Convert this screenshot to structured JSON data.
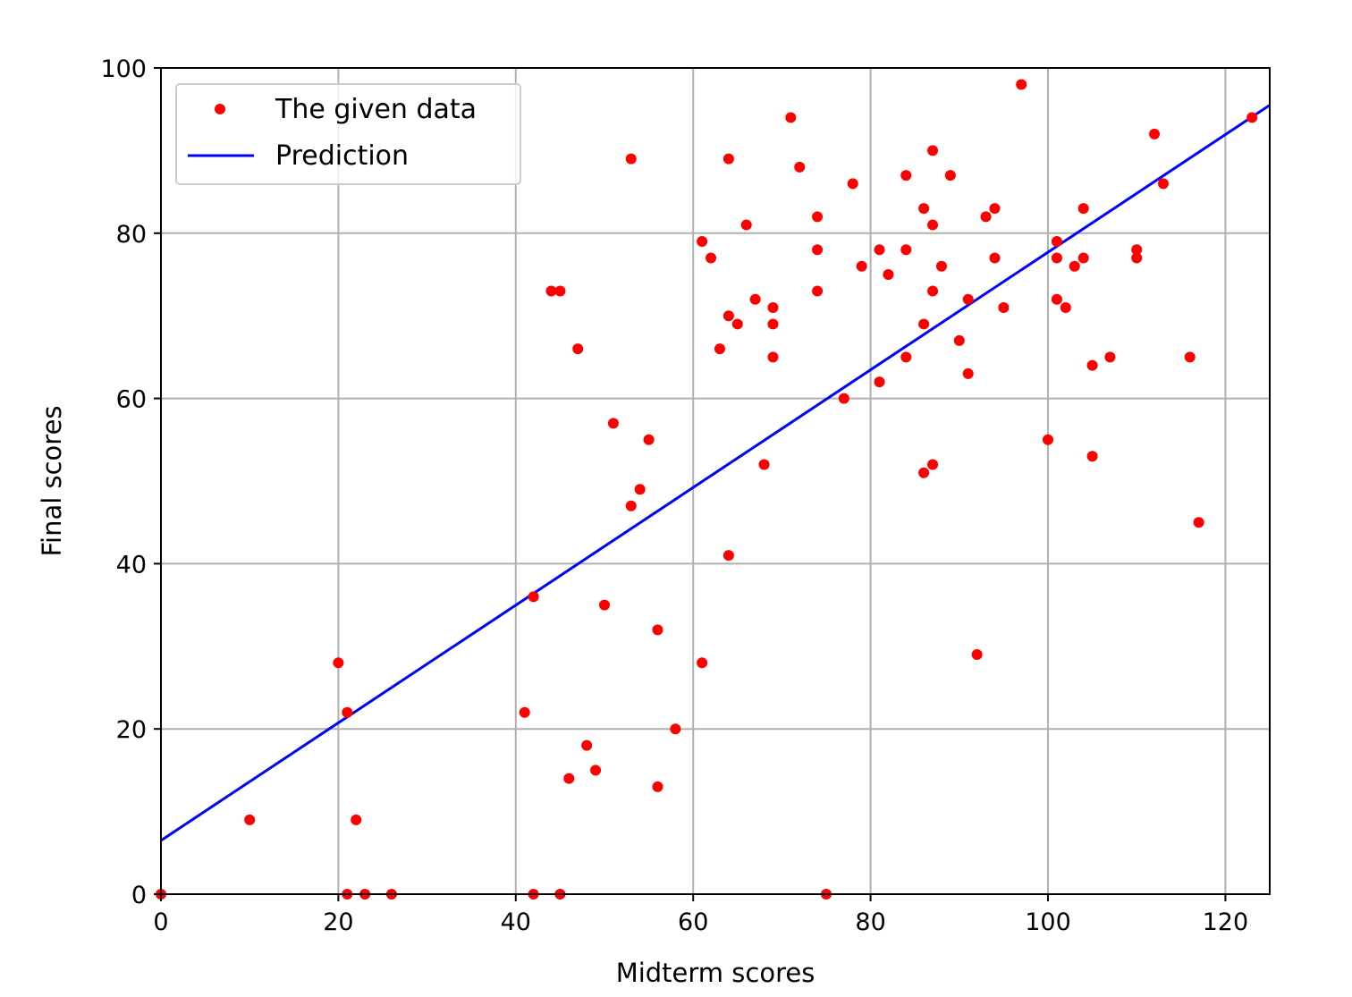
{
  "chart_data": {
    "type": "scatter",
    "xlabel": "Midterm scores",
    "ylabel": "Final scores",
    "xlim": [
      0,
      125
    ],
    "ylim": [
      0,
      100
    ],
    "xticks": [
      0,
      20,
      40,
      60,
      80,
      100,
      120
    ],
    "yticks": [
      0,
      20,
      40,
      60,
      80,
      100
    ],
    "grid": true,
    "legend_position": "upper-left",
    "series": [
      {
        "name": "The given data",
        "kind": "scatter",
        "color": "#ff0000",
        "points": [
          [
            0,
            0
          ],
          [
            10,
            9
          ],
          [
            20,
            28
          ],
          [
            21,
            22
          ],
          [
            21,
            0
          ],
          [
            22,
            9
          ],
          [
            23,
            0
          ],
          [
            26,
            0
          ],
          [
            41,
            22
          ],
          [
            42,
            36
          ],
          [
            42,
            0
          ],
          [
            44,
            73
          ],
          [
            45,
            73
          ],
          [
            45,
            0
          ],
          [
            46,
            14
          ],
          [
            47,
            66
          ],
          [
            48,
            18
          ],
          [
            49,
            15
          ],
          [
            50,
            35
          ],
          [
            51,
            57
          ],
          [
            53,
            89
          ],
          [
            53,
            47
          ],
          [
            54,
            49
          ],
          [
            55,
            55
          ],
          [
            56,
            32
          ],
          [
            56,
            13
          ],
          [
            58,
            20
          ],
          [
            61,
            79
          ],
          [
            61,
            28
          ],
          [
            62,
            77
          ],
          [
            63,
            66
          ],
          [
            64,
            89
          ],
          [
            64,
            70
          ],
          [
            64,
            41
          ],
          [
            65,
            69
          ],
          [
            66,
            81
          ],
          [
            67,
            72
          ],
          [
            68,
            52
          ],
          [
            69,
            71
          ],
          [
            69,
            69
          ],
          [
            69,
            65
          ],
          [
            71,
            94
          ],
          [
            72,
            88
          ],
          [
            74,
            82
          ],
          [
            74,
            78
          ],
          [
            74,
            73
          ],
          [
            75,
            0
          ],
          [
            77,
            60
          ],
          [
            78,
            86
          ],
          [
            79,
            76
          ],
          [
            81,
            78
          ],
          [
            81,
            62
          ],
          [
            82,
            75
          ],
          [
            84,
            87
          ],
          [
            84,
            78
          ],
          [
            84,
            65
          ],
          [
            86,
            83
          ],
          [
            86,
            69
          ],
          [
            86,
            51
          ],
          [
            87,
            90
          ],
          [
            87,
            81
          ],
          [
            87,
            73
          ],
          [
            87,
            52
          ],
          [
            88,
            76
          ],
          [
            89,
            87
          ],
          [
            90,
            67
          ],
          [
            91,
            72
          ],
          [
            91,
            63
          ],
          [
            92,
            29
          ],
          [
            93,
            82
          ],
          [
            94,
            83
          ],
          [
            94,
            77
          ],
          [
            95,
            71
          ],
          [
            97,
            98
          ],
          [
            100,
            55
          ],
          [
            101,
            79
          ],
          [
            101,
            77
          ],
          [
            101,
            72
          ],
          [
            102,
            71
          ],
          [
            103,
            76
          ],
          [
            104,
            83
          ],
          [
            104,
            77
          ],
          [
            105,
            64
          ],
          [
            105,
            53
          ],
          [
            107,
            65
          ],
          [
            110,
            78
          ],
          [
            110,
            77
          ],
          [
            112,
            92
          ],
          [
            113,
            86
          ],
          [
            116,
            65
          ],
          [
            117,
            45
          ],
          [
            123,
            94
          ]
        ]
      },
      {
        "name": "Prediction",
        "kind": "line",
        "color": "#0000ff",
        "x": [
          0,
          125
        ],
        "y": [
          6.5,
          95.5
        ]
      }
    ]
  }
}
